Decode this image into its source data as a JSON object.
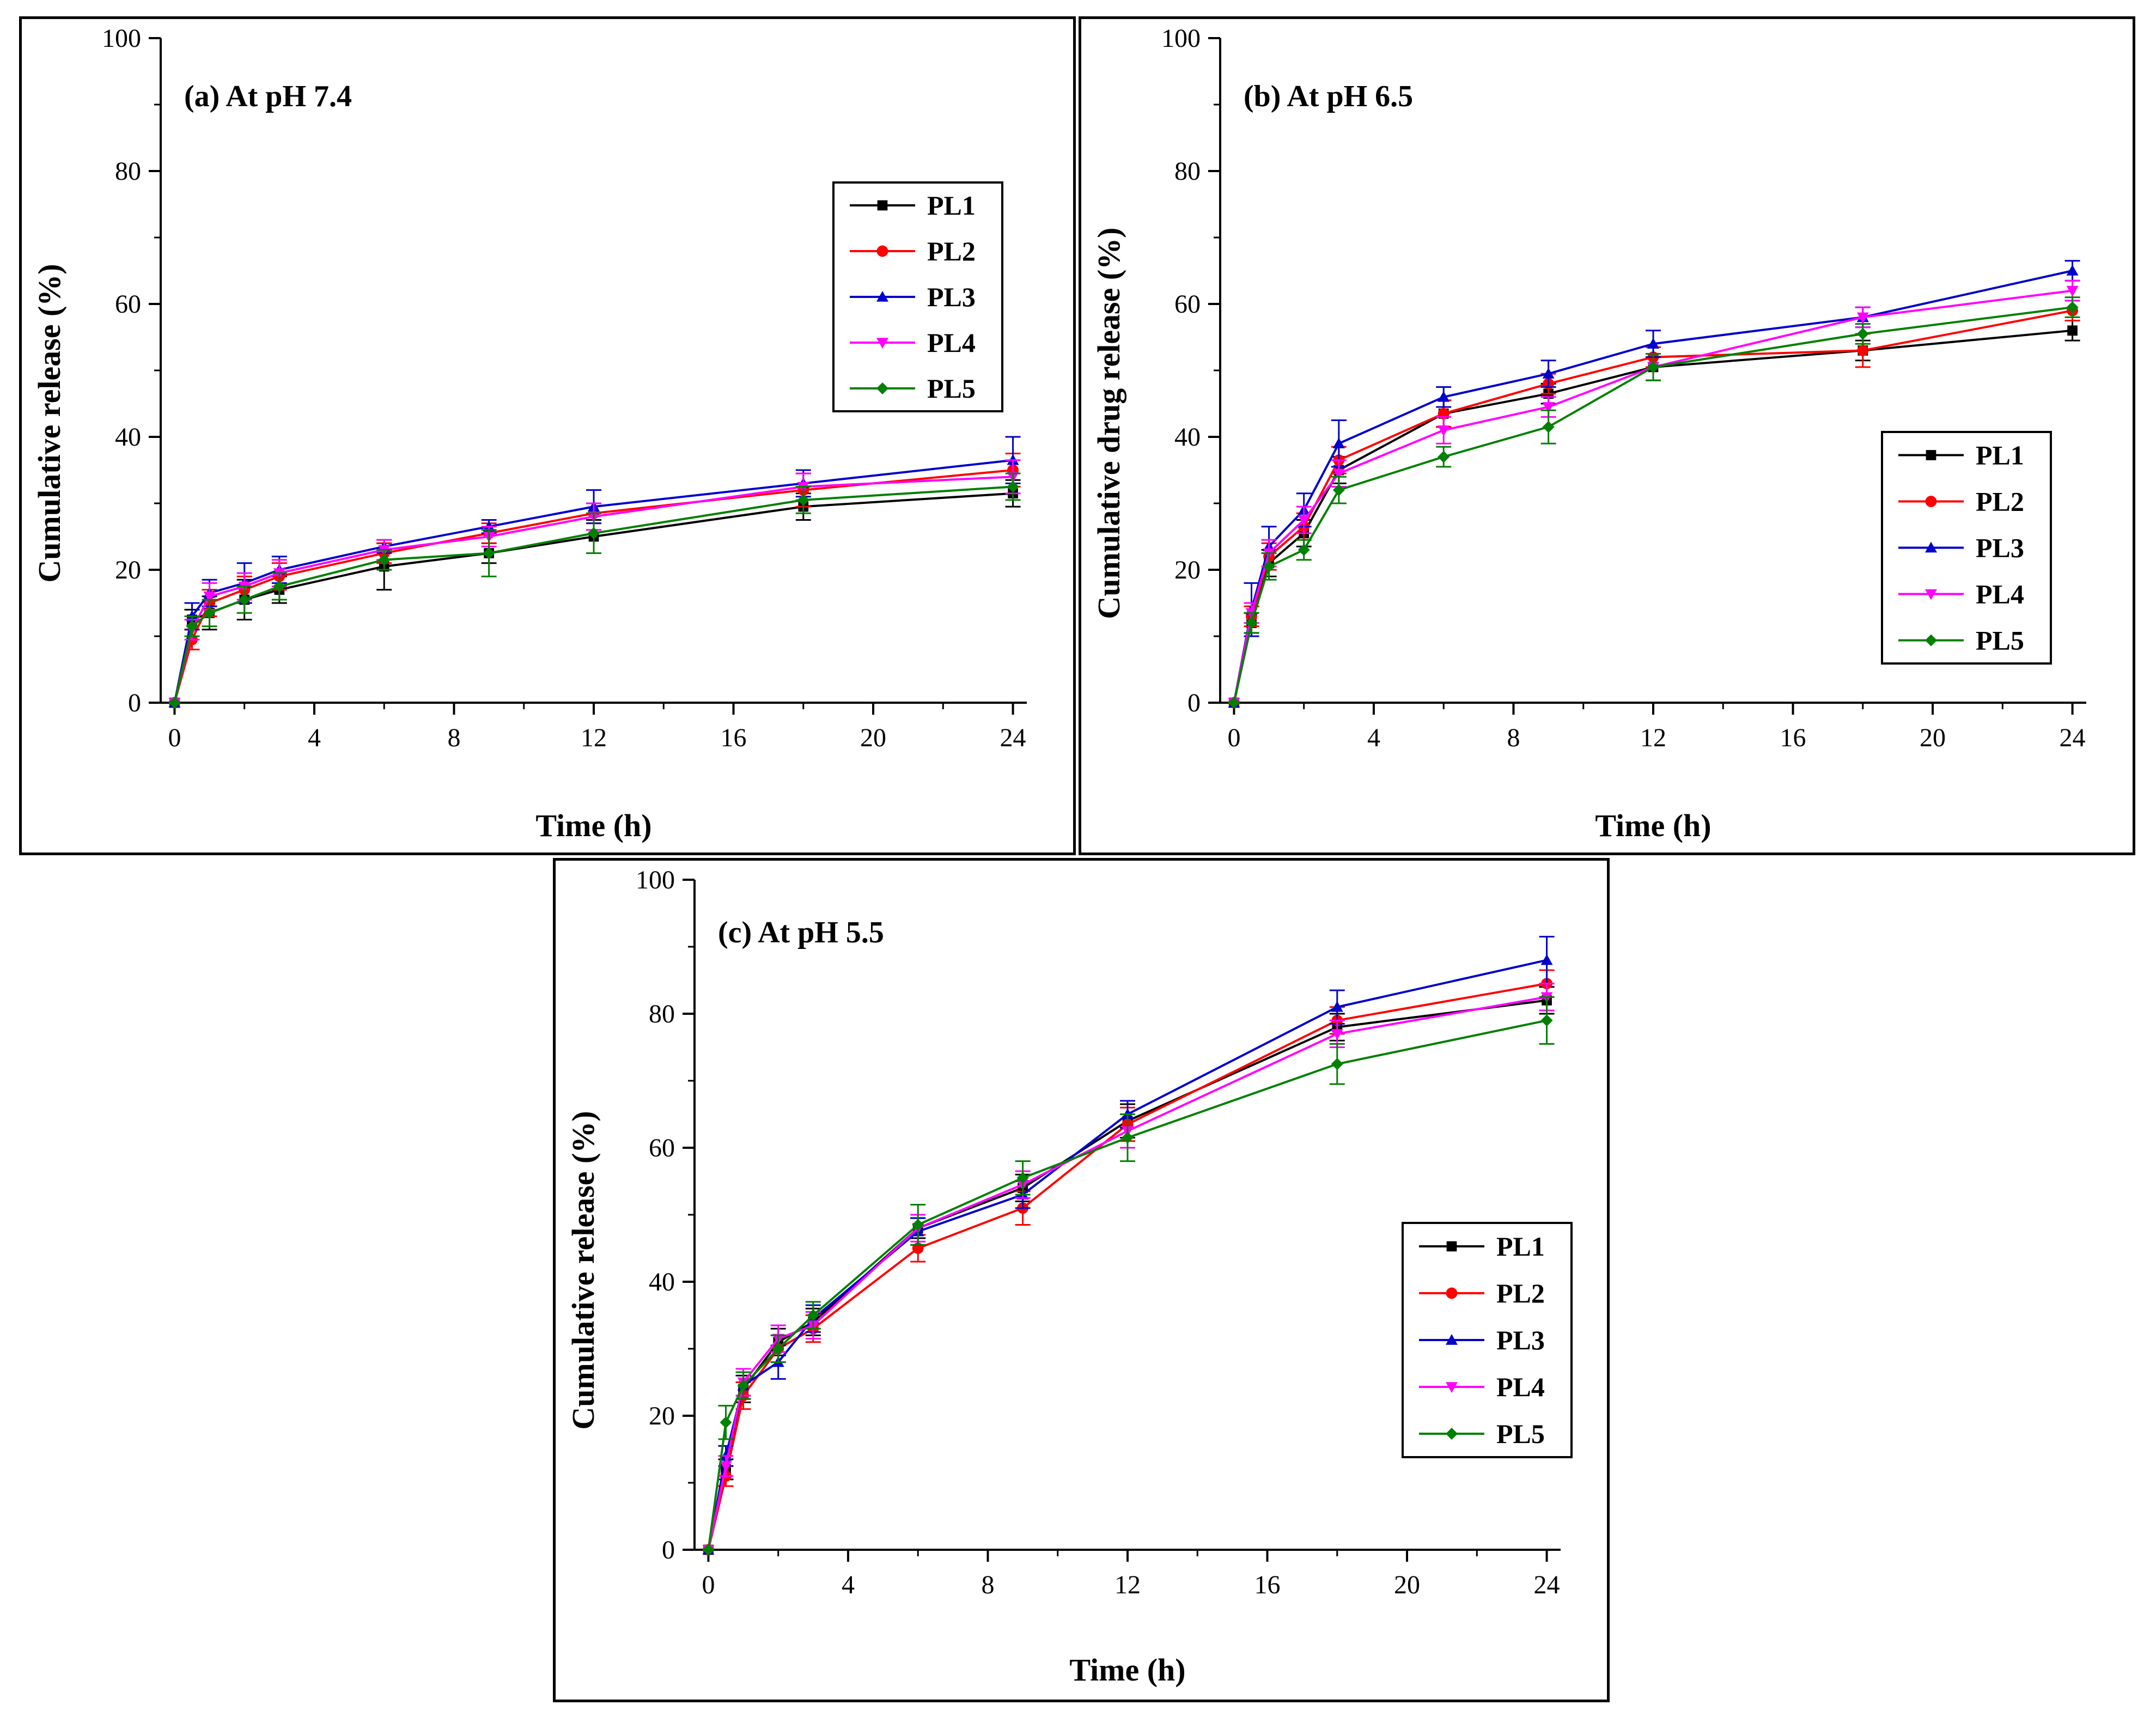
{
  "colors": {
    "PL1": "#000000",
    "PL2": "#ff0000",
    "PL3": "#0000cc",
    "PL4": "#ff00ff",
    "PL5": "#008000"
  },
  "chart_data": [
    {
      "type": "line",
      "panel_label": "(a) At pH 7.4",
      "xlabel": "Time (h)",
      "ylabel": "Cumulative release (%)",
      "xlim": [
        0,
        24
      ],
      "ylim": [
        0,
        100
      ],
      "xticks": [
        0,
        4,
        8,
        12,
        16,
        20,
        24
      ],
      "yticks": [
        0,
        20,
        40,
        60,
        80,
        100
      ],
      "legend_position": "top-right",
      "x": [
        0,
        0.5,
        1,
        2,
        3,
        6,
        9,
        12,
        18,
        24
      ],
      "series": [
        {
          "name": "PL1",
          "marker": "square",
          "values": [
            0,
            12.5,
            13.5,
            15.5,
            17,
            20.5,
            22.5,
            25,
            29.5,
            31.5
          ],
          "errors": [
            0,
            1.5,
            2.5,
            3,
            2,
            3.5,
            1.5,
            2.5,
            2,
            2
          ]
        },
        {
          "name": "PL2",
          "marker": "circle",
          "values": [
            0,
            9.5,
            15,
            17,
            19,
            22.5,
            25.5,
            28.5,
            32,
            35
          ],
          "errors": [
            0,
            1.5,
            2,
            2,
            2,
            1.5,
            1.5,
            1.5,
            2.5,
            2.5
          ]
        },
        {
          "name": "PL3",
          "marker": "triangle-up",
          "values": [
            0,
            13,
            16.5,
            18,
            20,
            23.5,
            26.5,
            29.5,
            33,
            36.5
          ],
          "errors": [
            0,
            2,
            2,
            3,
            2,
            1,
            1,
            2.5,
            2,
            3.5
          ]
        },
        {
          "name": "PL4",
          "marker": "triangle-down",
          "values": [
            0,
            11,
            16,
            17.5,
            19.5,
            23,
            25,
            28,
            32.5,
            34
          ],
          "errors": [
            0,
            1.5,
            2,
            2,
            2,
            1.5,
            1.5,
            2,
            2,
            2.5
          ]
        },
        {
          "name": "PL5",
          "marker": "diamond",
          "values": [
            0,
            11.5,
            13.5,
            15.5,
            17.5,
            21.5,
            22.5,
            25.5,
            30.5,
            32.5
          ],
          "errors": [
            0,
            1.5,
            2,
            2,
            2,
            1.5,
            3.5,
            3,
            2,
            2
          ]
        }
      ]
    },
    {
      "type": "line",
      "panel_label": "(b) At pH 6.5",
      "xlabel": "Time (h)",
      "ylabel": "Cumulative drug release (%)",
      "xlim": [
        0,
        24
      ],
      "ylim": [
        0,
        100
      ],
      "xticks": [
        0,
        4,
        8,
        12,
        16,
        20,
        24
      ],
      "yticks": [
        0,
        20,
        40,
        60,
        80,
        100
      ],
      "legend_position": "bottom-right",
      "x": [
        0,
        0.5,
        1,
        2,
        3,
        6,
        9,
        12,
        18,
        24
      ],
      "series": [
        {
          "name": "PL1",
          "marker": "square",
          "values": [
            0,
            12,
            21,
            25.5,
            35,
            43.5,
            46.5,
            50.5,
            53,
            56
          ],
          "errors": [
            0,
            1.5,
            2,
            2,
            2,
            2,
            1.5,
            2,
            1.5,
            1.5
          ]
        },
        {
          "name": "PL2",
          "marker": "circle",
          "values": [
            0,
            13,
            22,
            26.5,
            36.5,
            43.5,
            48,
            52,
            53,
            59
          ],
          "errors": [
            0,
            1.5,
            2,
            2,
            2,
            2,
            1.5,
            1.5,
            2.5,
            1.5
          ]
        },
        {
          "name": "PL3",
          "marker": "triangle-up",
          "values": [
            0,
            14,
            23.5,
            29,
            39,
            46,
            49.5,
            54,
            58,
            65
          ],
          "errors": [
            0,
            4,
            3,
            2.5,
            3.5,
            1.5,
            2,
            2,
            1.5,
            1.5
          ]
        },
        {
          "name": "PL4",
          "marker": "triangle-down",
          "values": [
            0,
            13.5,
            22.5,
            27.5,
            34.5,
            41,
            44.5,
            50.5,
            58,
            62
          ],
          "errors": [
            0,
            1.5,
            2,
            2,
            2,
            2,
            1.5,
            2,
            1.5,
            1.5
          ]
        },
        {
          "name": "PL5",
          "marker": "diamond",
          "values": [
            0,
            12,
            20.5,
            23,
            32,
            37,
            41.5,
            50.5,
            55.5,
            59.5
          ],
          "errors": [
            0,
            1.5,
            2,
            1.5,
            2,
            1.5,
            2.5,
            2,
            1.5,
            1.5
          ]
        }
      ]
    },
    {
      "type": "line",
      "panel_label": "(c) At pH 5.5",
      "xlabel": "Time (h)",
      "ylabel": "Cumulative release (%)",
      "xlim": [
        0,
        24
      ],
      "ylim": [
        0,
        100
      ],
      "xticks": [
        0,
        4,
        8,
        12,
        16,
        20,
        24
      ],
      "yticks": [
        0,
        20,
        40,
        60,
        80,
        100
      ],
      "legend_position": "bottom-right",
      "x": [
        0,
        0.5,
        1,
        2,
        3,
        6,
        9,
        12,
        18,
        24
      ],
      "series": [
        {
          "name": "PL1",
          "marker": "square",
          "values": [
            0,
            12,
            24,
            31,
            34,
            48,
            54,
            64,
            78,
            82
          ],
          "errors": [
            0,
            1.5,
            2,
            2,
            2,
            1.5,
            2,
            2.5,
            2,
            2
          ]
        },
        {
          "name": "PL2",
          "marker": "circle",
          "values": [
            0,
            11,
            23,
            30,
            33,
            45,
            51,
            63.5,
            79,
            84.5
          ],
          "errors": [
            0,
            1.5,
            2,
            2,
            2,
            2,
            2.5,
            2.5,
            2,
            2
          ]
        },
        {
          "name": "PL3",
          "marker": "triangle-up",
          "values": [
            0,
            14,
            24.5,
            28,
            34.5,
            47.5,
            53,
            65,
            81,
            88
          ],
          "errors": [
            0,
            1.5,
            2,
            2.5,
            2,
            2,
            2,
            2,
            2.5,
            3.5
          ]
        },
        {
          "name": "PL4",
          "marker": "triangle-down",
          "values": [
            0,
            12.5,
            25,
            31.5,
            33.5,
            48,
            54.5,
            62.5,
            77,
            82.5
          ],
          "errors": [
            0,
            1.5,
            2,
            2,
            2,
            2,
            2,
            2.5,
            2,
            2
          ]
        },
        {
          "name": "PL5",
          "marker": "diamond",
          "values": [
            0,
            19,
            24.5,
            30,
            35,
            48.5,
            55.5,
            61.5,
            72.5,
            79
          ],
          "errors": [
            0,
            2.5,
            2,
            2,
            2,
            3,
            2.5,
            3.5,
            3,
            3.5
          ]
        }
      ]
    }
  ]
}
